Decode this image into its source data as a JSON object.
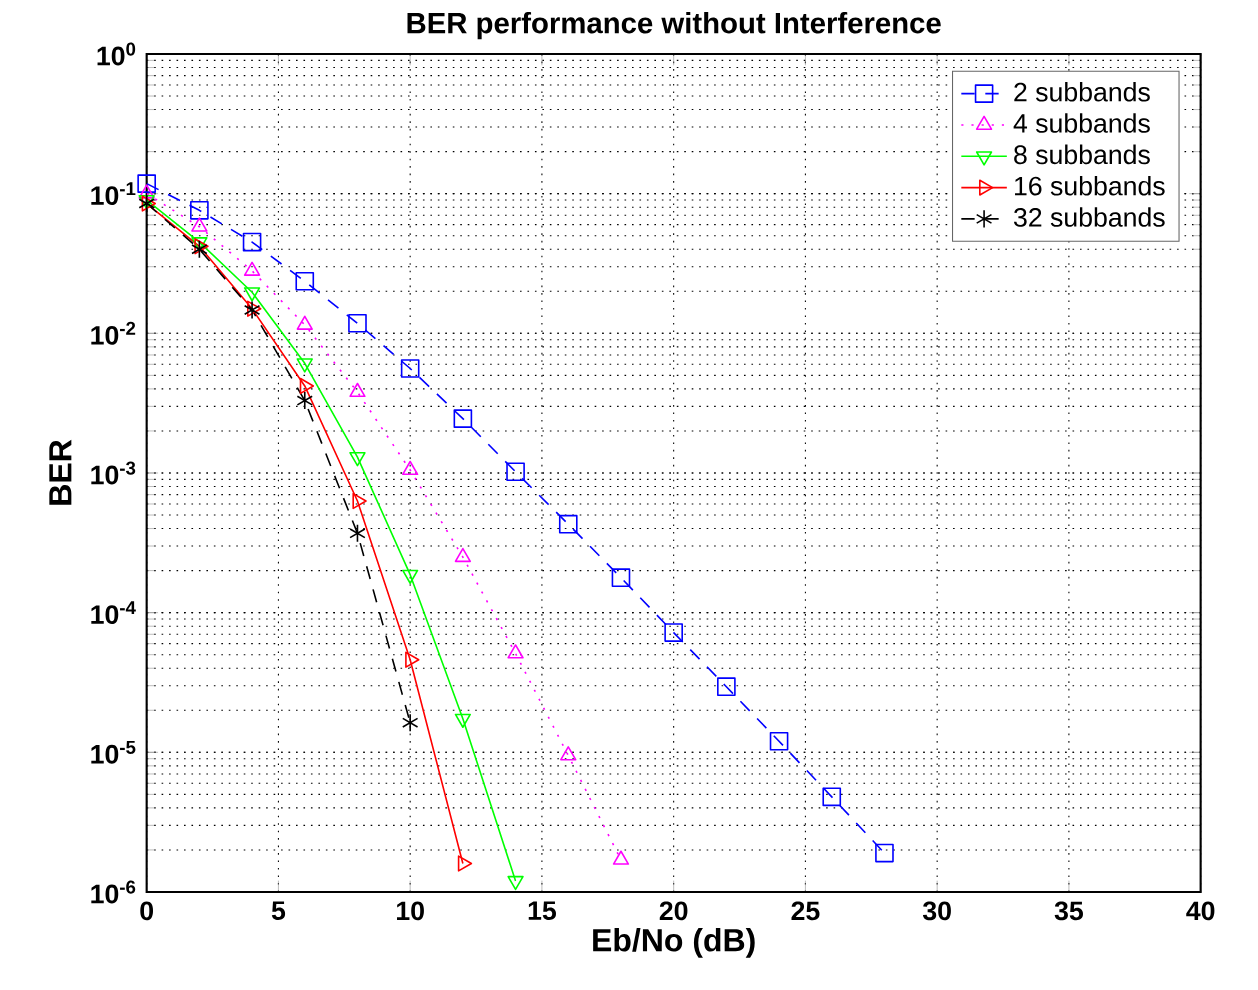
{
  "chart_data": {
    "type": "line",
    "title": "BER performance without Interference",
    "xlabel": "Eb/No (dB)",
    "ylabel": "BER",
    "log": "y",
    "grid": true,
    "legend": "top right",
    "xlim": [
      0,
      40
    ],
    "xticks": [
      0,
      5,
      10,
      15,
      20,
      25,
      30,
      35,
      40
    ],
    "ylim": [
      1e-06,
      1
    ],
    "yticks": [
      {
        "value": 1e-06,
        "label": "10$^{-6}$"
      },
      {
        "value": 1e-05,
        "label": "10$^{-5}$"
      },
      {
        "value": 0.0001,
        "label": "10$^{-4}$"
      },
      {
        "value": 0.001,
        "label": "10$^{-3}$"
      },
      {
        "value": 0.01,
        "label": "10$^{-2}$"
      },
      {
        "value": 0.1,
        "label": "10$^{-1}$"
      },
      {
        "value": 1,
        "label": "10$^{0}$"
      }
    ],
    "series": [
      {
        "name": "2 subbands",
        "color": "#0000ff",
        "marker": "square",
        "line_style": "dashed",
        "x": [
          0,
          2,
          4,
          6,
          8,
          10,
          12,
          14,
          16,
          18,
          20,
          22,
          24,
          26,
          28
        ],
        "values": [
          0.118,
          0.076,
          0.045,
          0.0236,
          0.0118,
          0.0056,
          0.00245,
          0.00102,
          0.00043,
          0.000178,
          7.2e-05,
          2.95e-05,
          1.2e-05,
          4.8e-06,
          1.9e-06
        ]
      },
      {
        "name": "4 subbands",
        "color": "#ff00ff",
        "marker": "triangle",
        "line_style": "dotted",
        "x": [
          0,
          2,
          4,
          6,
          8,
          10,
          12,
          14,
          16,
          18
        ],
        "values": [
          0.1,
          0.058,
          0.028,
          0.0115,
          0.0038,
          0.00105,
          0.00025,
          5.1e-05,
          9.5e-06,
          1.7e-06
        ]
      },
      {
        "name": "8 subbands",
        "color": "#00ff00",
        "marker": "triangle-down",
        "line_style": "solid",
        "x": [
          0,
          2,
          4,
          6,
          8,
          10,
          12,
          14
        ],
        "values": [
          0.09,
          0.045,
          0.0197,
          0.0061,
          0.0013,
          0.000187,
          1.74e-05,
          1.2e-06
        ]
      },
      {
        "name": "16 subbands",
        "color": "#ff0000",
        "marker": "triangle-right",
        "line_style": "solid",
        "x": [
          0,
          2,
          4,
          6,
          8,
          10,
          12
        ],
        "values": [
          0.085,
          0.042,
          0.015,
          0.0042,
          0.00063,
          4.6e-05,
          1.6e-06
        ]
      },
      {
        "name": "32 subbands",
        "color": "#000000",
        "marker": "cross",
        "line_style": "dashed",
        "x": [
          0,
          2,
          4,
          6,
          8,
          10
        ],
        "values": [
          0.085,
          0.04,
          0.0147,
          0.0033,
          0.00037,
          1.63e-05
        ]
      }
    ]
  }
}
